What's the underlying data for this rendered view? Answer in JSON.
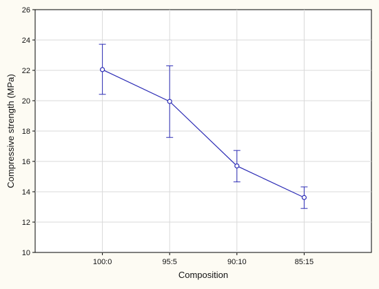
{
  "chart_data": {
    "type": "line",
    "categories": [
      "100:0",
      "95:5",
      "90:10",
      "85:15"
    ],
    "series": [
      {
        "values": [
          22.05,
          19.95,
          15.7,
          13.62
        ],
        "error_low": [
          20.42,
          17.58,
          14.65,
          12.9
        ],
        "error_high": [
          23.72,
          22.3,
          16.72,
          14.32
        ]
      }
    ],
    "xlabel": "Composition",
    "ylabel": "Compressive strength (MPa)",
    "ylim": [
      10,
      26
    ],
    "yticks": [
      10,
      12,
      14,
      16,
      18,
      20,
      22,
      24,
      26
    ],
    "grid": true,
    "colors": {
      "series": "#2b2bb5",
      "grid": "#d9d9d9",
      "plot_background": "#ffffff",
      "page_background": "#fdfbf3"
    }
  }
}
